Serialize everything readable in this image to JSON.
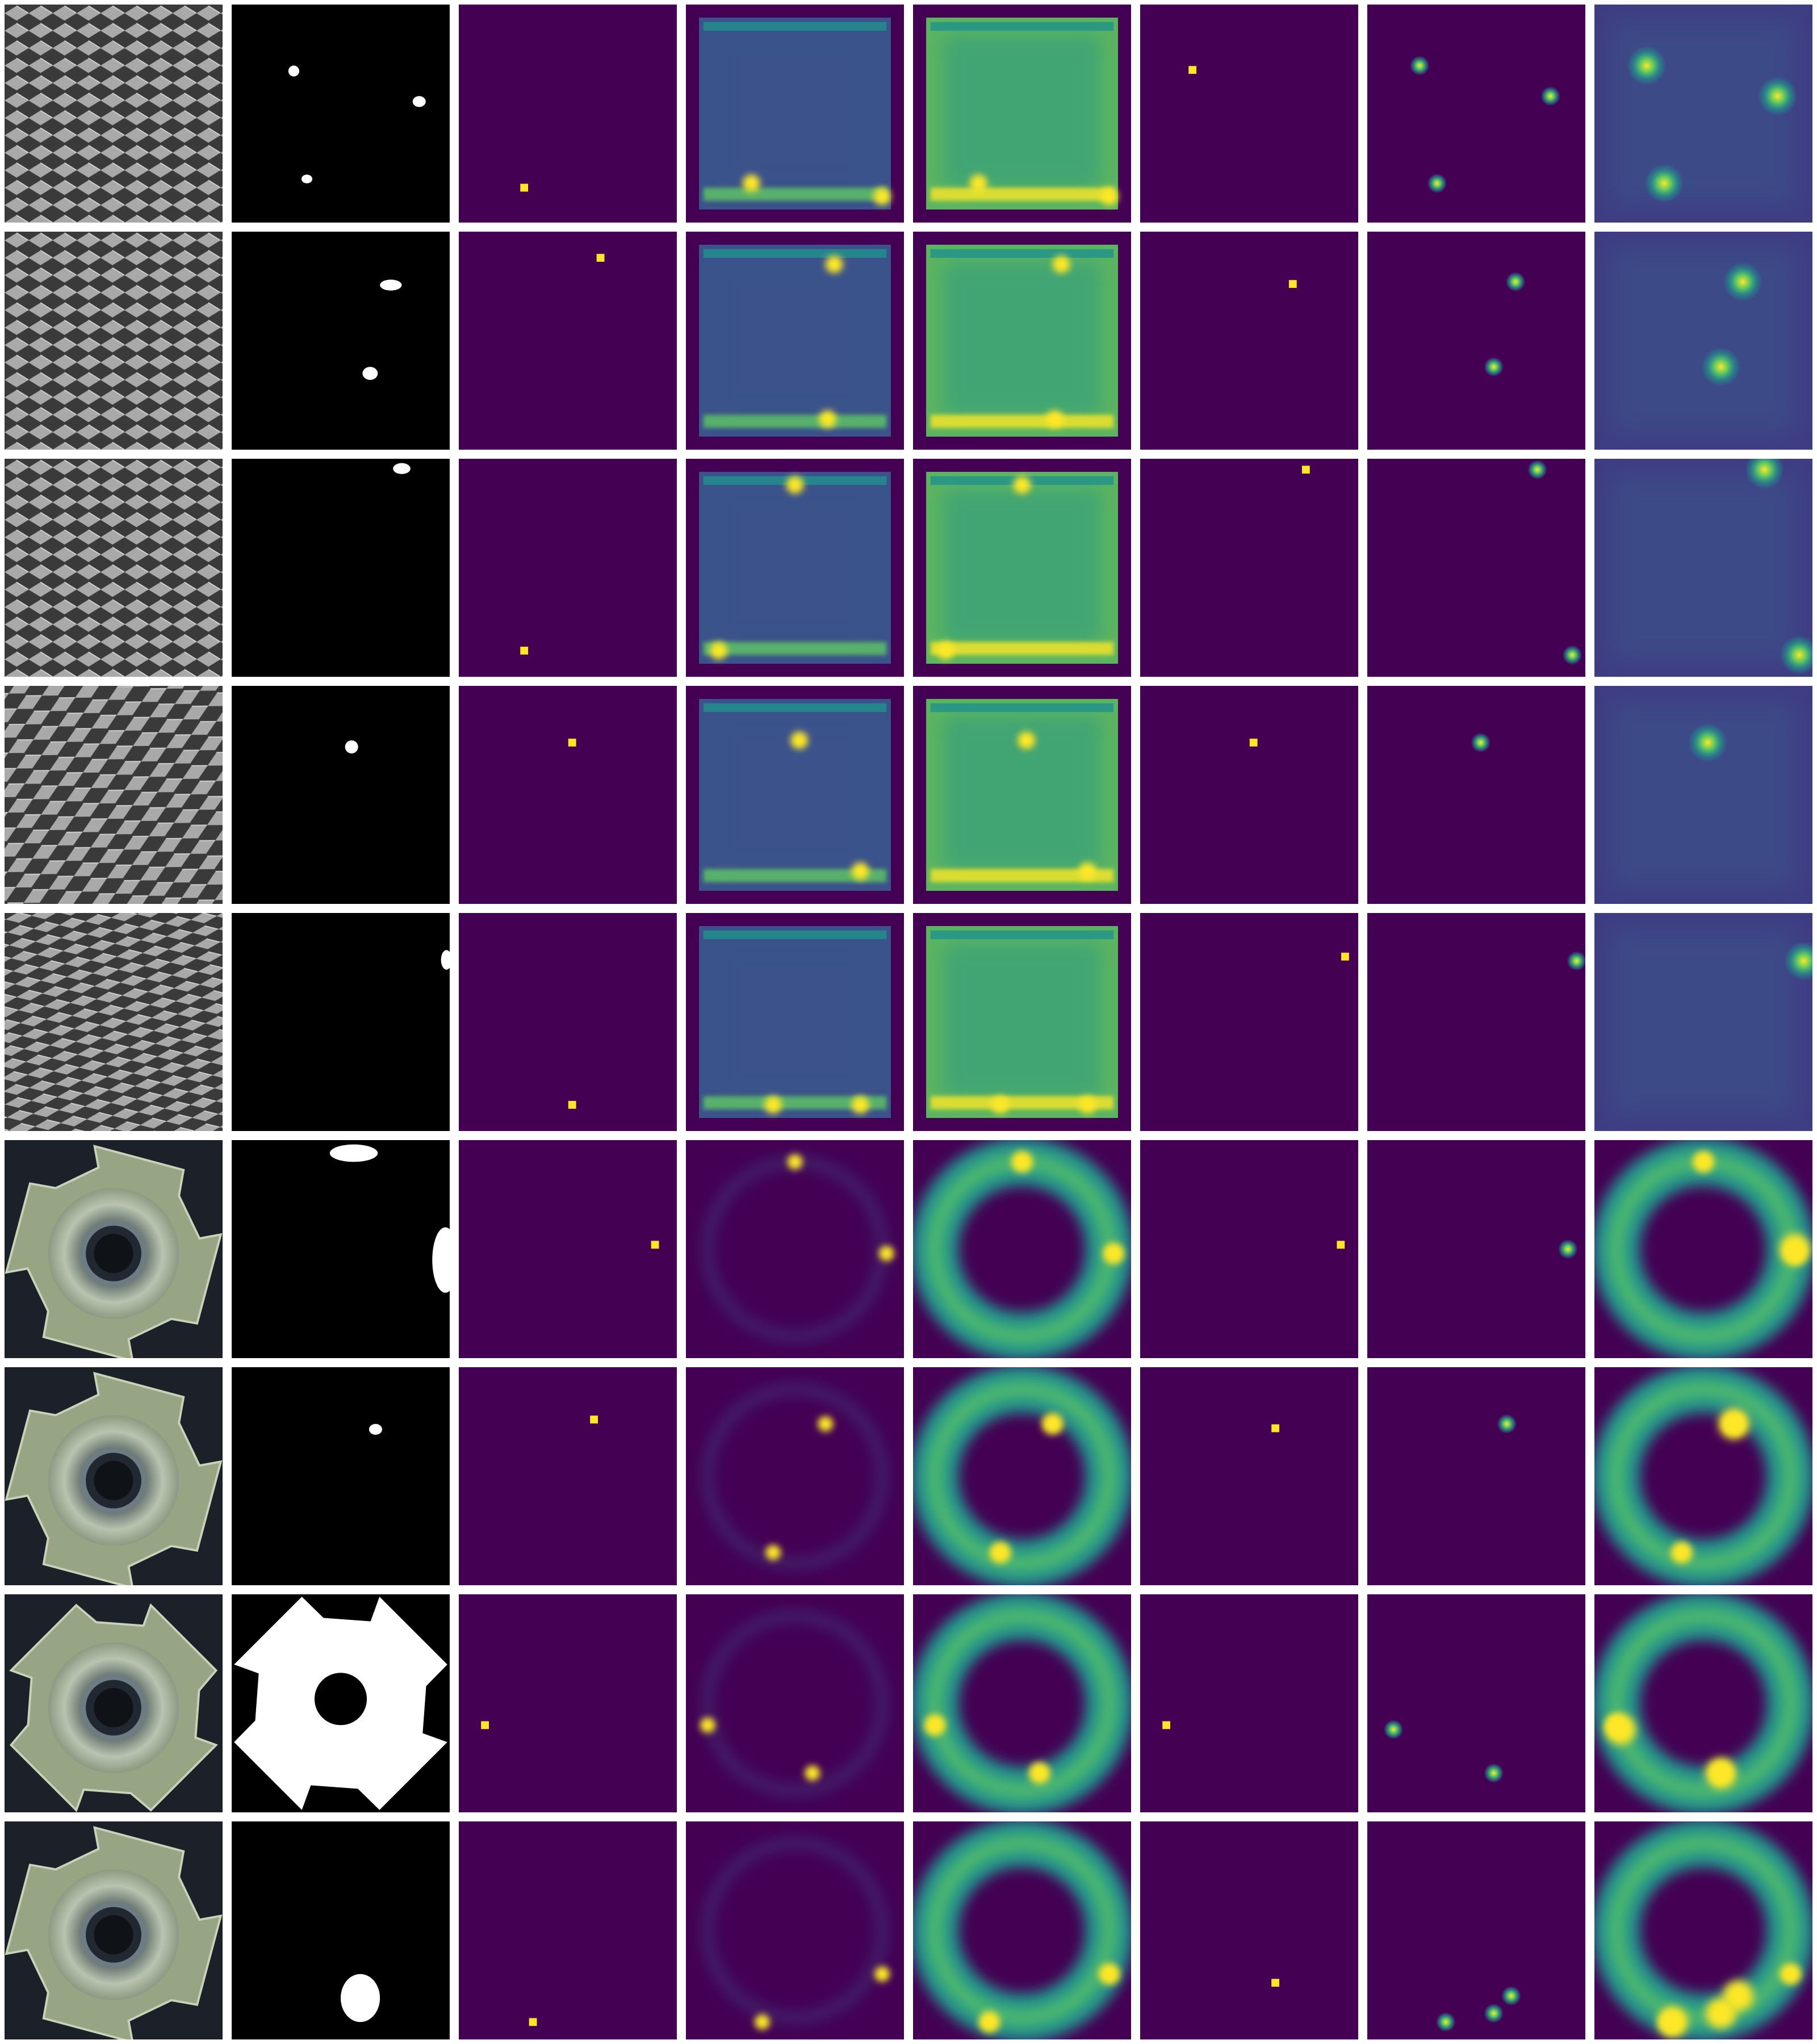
{
  "figure": {
    "background": "#ffffff",
    "colormap": [
      "#440154",
      "#3b528b",
      "#21918c",
      "#5ec962",
      "#fde725"
    ],
    "columns": [
      "input-image",
      "ground-truth-mask",
      "argmax-peak-map",
      "anomaly-heatmap-a",
      "anomaly-heatmap-b",
      "argmax-peak-map-b",
      "anomaly-heatmap-c",
      "anomaly-heatmap-d"
    ],
    "rows": [
      {
        "object": "metal-grid",
        "pattern": "diamond-mesh",
        "mask": [
          [
            0.26,
            0.28,
            0.05,
            0.05
          ],
          [
            0.83,
            0.42,
            0.06,
            0.05
          ],
          [
            0.32,
            0.78,
            0.05,
            0.04
          ]
        ],
        "peakA": [
          0.3,
          0.84
        ],
        "peakB": [
          0.24,
          0.3
        ],
        "hotspots": [
          [
            0.24,
            0.28
          ],
          [
            0.84,
            0.42
          ],
          [
            0.32,
            0.82
          ]
        ],
        "edgeHot": [
          [
            0.3,
            0.82
          ],
          [
            0.9,
            0.88
          ]
        ]
      },
      {
        "object": "metal-grid",
        "pattern": "diamond-mesh",
        "mask": [
          [
            0.68,
            0.22,
            0.1,
            0.05
          ],
          [
            0.6,
            0.62,
            0.07,
            0.06
          ]
        ],
        "peakA": [
          0.65,
          0.12
        ],
        "peakB": [
          0.7,
          0.24
        ],
        "hotspots": [
          [
            0.68,
            0.23
          ],
          [
            0.58,
            0.62
          ]
        ],
        "edgeHot": [
          [
            0.68,
            0.15
          ],
          [
            0.65,
            0.86
          ]
        ]
      },
      {
        "object": "metal-grid",
        "pattern": "diamond-mesh",
        "mask": [
          [
            0.74,
            0.02,
            0.08,
            0.05
          ]
        ],
        "peakA": [
          0.3,
          0.88
        ],
        "peakB": [
          0.76,
          0.05
        ],
        "hotspots": [
          [
            0.78,
            0.05
          ],
          [
            0.94,
            0.9
          ]
        ],
        "edgeHot": [
          [
            0.15,
            0.88
          ],
          [
            0.5,
            0.12
          ]
        ]
      },
      {
        "object": "metal-grid",
        "pattern": "slanted-mesh",
        "mask": [
          [
            0.52,
            0.25,
            0.06,
            0.06
          ]
        ],
        "peakA": [
          0.52,
          0.26
        ],
        "peakB": [
          0.52,
          0.26
        ],
        "hotspots": [
          [
            0.52,
            0.26
          ]
        ],
        "edgeHot": [
          [
            0.52,
            0.25
          ],
          [
            0.8,
            0.85
          ]
        ]
      },
      {
        "object": "metal-grid",
        "pattern": "bent-mesh",
        "mask": [
          [
            0.96,
            0.17,
            0.05,
            0.09
          ]
        ],
        "peakA": [
          0.52,
          0.88
        ],
        "peakB": [
          0.94,
          0.2
        ],
        "hotspots": [
          [
            0.96,
            0.22
          ]
        ],
        "edgeHot": [
          [
            0.4,
            0.88
          ],
          [
            0.8,
            0.88
          ]
        ]
      },
      {
        "object": "metal-nut",
        "pattern": "nut",
        "mask": [
          [
            0.45,
            0.02,
            0.22,
            0.08
          ],
          [
            0.92,
            0.4,
            0.12,
            0.3
          ]
        ],
        "peakA": [
          0.9,
          0.48
        ],
        "peakB": [
          0.92,
          0.48
        ],
        "hotspots": [
          [
            0.92,
            0.5
          ]
        ],
        "edgeHot": [
          [
            0.92,
            0.52
          ],
          [
            0.5,
            0.1
          ]
        ]
      },
      {
        "object": "metal-nut",
        "pattern": "nut",
        "mask": [
          [
            0.63,
            0.26,
            0.06,
            0.05
          ]
        ],
        "peakA": [
          0.62,
          0.24
        ],
        "peakB": [
          0.62,
          0.28
        ],
        "hotspots": [
          [
            0.64,
            0.26
          ]
        ],
        "edgeHot": [
          [
            0.64,
            0.26
          ],
          [
            0.4,
            0.85
          ]
        ]
      },
      {
        "object": "metal-nut",
        "pattern": "nut-flipped",
        "mask": [],
        "maskLarge": true,
        "peakA": [
          0.12,
          0.6
        ],
        "peakB": [
          0.12,
          0.6
        ],
        "hotspots": [
          [
            0.12,
            0.62
          ],
          [
            0.58,
            0.82
          ]
        ],
        "edgeHot": [
          [
            0.1,
            0.6
          ],
          [
            0.58,
            0.82
          ]
        ]
      },
      {
        "object": "metal-nut",
        "pattern": "nut",
        "mask": [
          [
            0.5,
            0.7,
            0.18,
            0.22
          ]
        ],
        "peakA": [
          0.34,
          0.92
        ],
        "peakB": [
          0.62,
          0.74
        ],
        "hotspots": [
          [
            0.58,
            0.88
          ],
          [
            0.66,
            0.8
          ],
          [
            0.36,
            0.92
          ]
        ],
        "edgeHot": [
          [
            0.35,
            0.92
          ],
          [
            0.9,
            0.7
          ]
        ]
      }
    ]
  }
}
